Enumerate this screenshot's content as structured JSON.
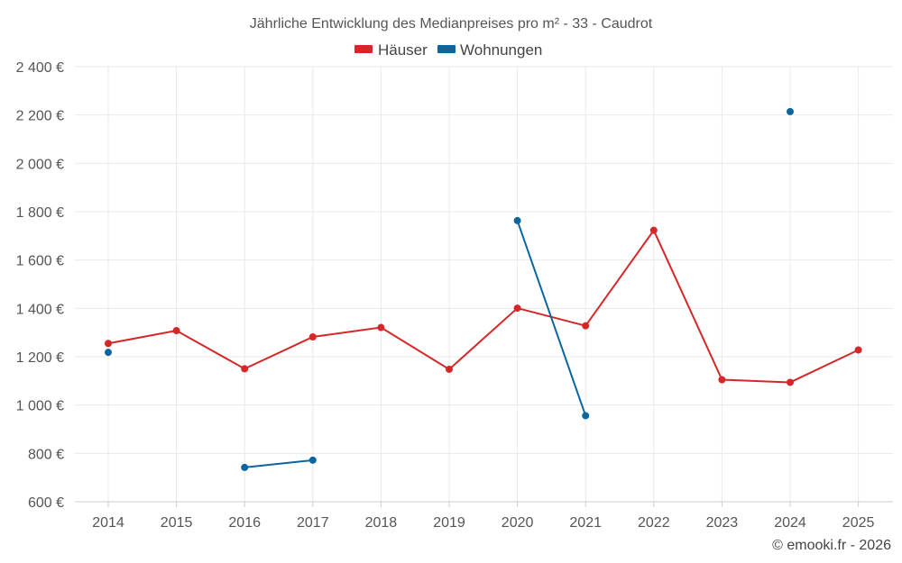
{
  "chart_data": {
    "type": "line",
    "title": "Jährliche Entwicklung des Medianpreises pro m² - 33 - Caudrot",
    "categories": [
      "2014",
      "2015",
      "2016",
      "2017",
      "2018",
      "2019",
      "2020",
      "2021",
      "2022",
      "2023",
      "2024",
      "2025"
    ],
    "ylim": [
      600,
      2400
    ],
    "yticks": [
      600,
      800,
      1000,
      1200,
      1400,
      1600,
      1800,
      2000,
      2200,
      2400
    ],
    "ytick_labels": [
      "600 €",
      "800 €",
      "1 000 €",
      "1 200 €",
      "1 400 €",
      "1 600 €",
      "1 800 €",
      "2 000 €",
      "2 200 €",
      "2 400 €"
    ],
    "grid": true,
    "legend_position": "top-center",
    "series": [
      {
        "name": "Häuser",
        "color": "#d62728",
        "values": [
          1255,
          1308,
          1150,
          1282,
          1321,
          1148,
          1401,
          1328,
          1723,
          1105,
          1094,
          1228
        ]
      },
      {
        "name": "Wohnungen",
        "color": "#0b66a0",
        "values": [
          1218,
          null,
          742,
          772,
          null,
          null,
          1763,
          956,
          null,
          null,
          2214,
          null
        ]
      }
    ]
  },
  "credit": "© emooki.fr - 2026"
}
